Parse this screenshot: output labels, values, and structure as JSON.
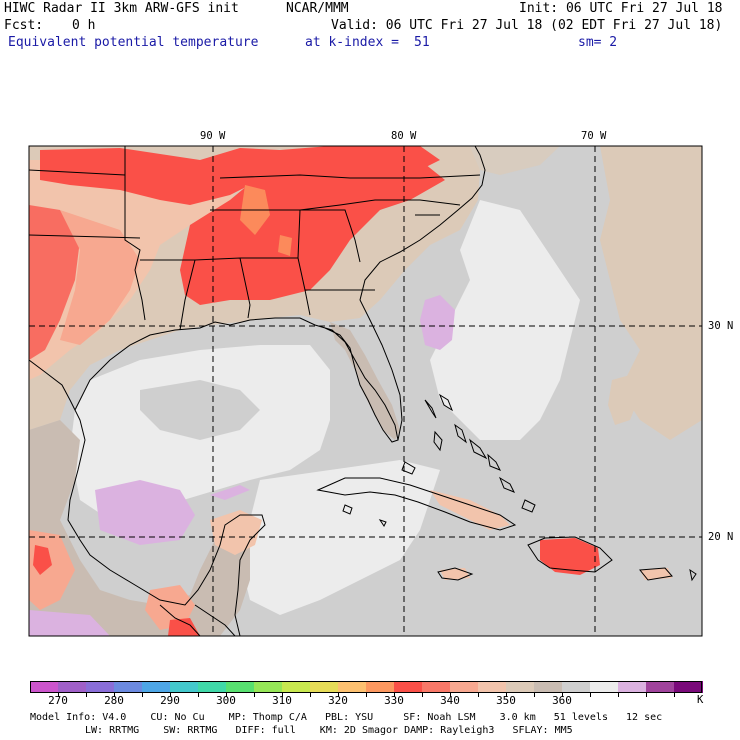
{
  "header": {
    "model_title": "HIWC Radar II 3km ARW-GFS init",
    "center": "NCAR/MMM",
    "init": "Init: 06 UTC Fri 27 Jul 18",
    "fcst_label": "Fcst:",
    "fcst_value": "0 h",
    "valid": "Valid: 06 UTC Fri 27 Jul 18 (02 EDT Fri 27 Jul 18)",
    "field": "Equivalent potential temperature",
    "level": "at k-index =",
    "level_value": "51",
    "smoothing": "sm= 2"
  },
  "map": {
    "longitude_labels": [
      "90 W",
      "80 W",
      "70 W"
    ],
    "latitude_labels": [
      "30 N",
      "20 N"
    ],
    "colors": {
      "c270": "#cc55cc",
      "c280": "#8a6ed8",
      "c290": "#4ea6e6",
      "c300": "#40d8a8",
      "c310": "#c8e850",
      "c320": "#fcc070",
      "c330": "#fa5048",
      "c340": "#f7a890",
      "c350": "#dccab8",
      "c355": "#c9bcb2",
      "c360": "#cfcfcf",
      "c365": "#ececec",
      "lilac": "#dbb2e0"
    }
  },
  "colorbar": {
    "colors": [
      "#cc55cc",
      "#a060c8",
      "#8a6ed8",
      "#6c8ae0",
      "#4ea6e6",
      "#44c8cc",
      "#40d8a8",
      "#58e070",
      "#96e658",
      "#c8e850",
      "#e6dc58",
      "#fcc070",
      "#fc9860",
      "#fa5048",
      "#f87868",
      "#f7a890",
      "#f2c4ac",
      "#dccab8",
      "#c9bcb2",
      "#cfcfcf",
      "#ececec",
      "#dbb2e0",
      "#a0449c",
      "#7a0a7a"
    ],
    "labels": [
      "270",
      "280",
      "290",
      "300",
      "310",
      "320",
      "330",
      "340",
      "350",
      "360"
    ],
    "unit": "K"
  },
  "footer": {
    "line1": "Model Info: V4.0    CU: No Cu    MP: Thomp C/A   PBL: YSU     SF: Noah LSM    3.0 km   51 levels   12 sec",
    "line2": "LW: RRTMG    SW: RRTMG   DIFF: full    KM: 2D Smagor DAMP: Rayleigh3   SFLAY: MM5"
  }
}
